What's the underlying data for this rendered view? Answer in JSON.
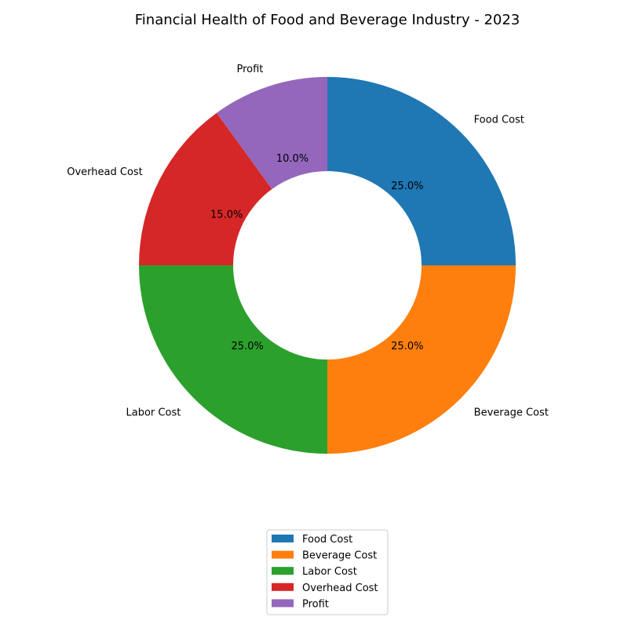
{
  "chart_data": {
    "type": "pie",
    "donut": true,
    "title": "Financial Health of Food and Beverage Industry - 2023",
    "categories": [
      "Food Cost",
      "Beverage Cost",
      "Labor Cost",
      "Overhead Cost",
      "Profit"
    ],
    "values": [
      25,
      25,
      25,
      15,
      10
    ],
    "percent_labels": [
      "25.0%",
      "25.0%",
      "25.0%",
      "15.0%",
      "10.0%"
    ],
    "colors": [
      "#1f77b4",
      "#ff7f0e",
      "#2ca02c",
      "#d62728",
      "#9467bd"
    ],
    "start_angle_deg": 90,
    "direction": "clockwise",
    "legend": {
      "placement": "bottom-center",
      "entries": [
        "Food Cost",
        "Beverage Cost",
        "Labor Cost",
        "Overhead Cost",
        "Profit"
      ]
    }
  }
}
